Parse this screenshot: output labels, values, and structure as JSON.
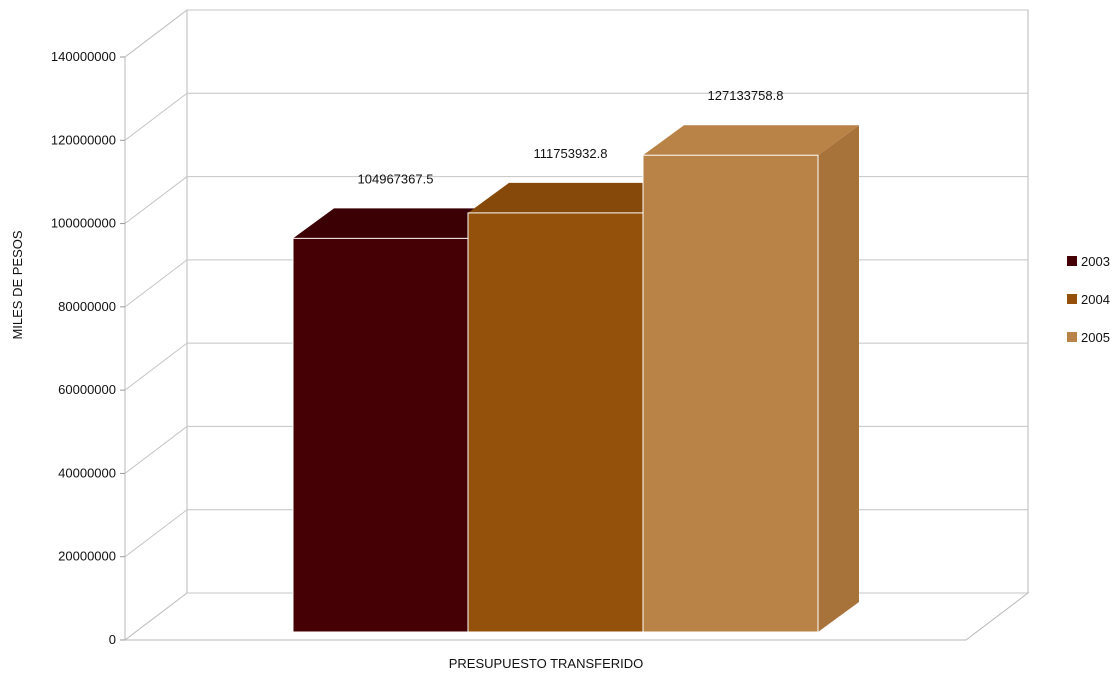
{
  "chart_data": {
    "type": "bar",
    "subtype": "3d-clustered-column",
    "title": "",
    "xlabel": "PRESUPUESTO TRANSFERIDO",
    "ylabel": "MILES DE PESOS",
    "ylim": [
      0,
      140000000
    ],
    "yticks": [
      "0",
      "20000000",
      "40000000",
      "60000000",
      "80000000",
      "100000000",
      "120000000",
      "140000000"
    ],
    "grid": true,
    "legend_position": "right",
    "categories": [
      "PRESUPUESTO TRANSFERIDO"
    ],
    "series": [
      {
        "name": "2003",
        "value": 104967367.5,
        "label": "104967367.5",
        "color": "#450005",
        "side_color": "#2e0003",
        "top_color": "#3a0004"
      },
      {
        "name": "2004",
        "value": 111753932.8,
        "label": "111753932.8",
        "color": "#94510b",
        "side_color": "#6e3b06",
        "top_color": "#864909"
      },
      {
        "name": "2005",
        "value": 127133758.8,
        "label": "127133758.8",
        "color": "#b98246",
        "side_color": "#a8733a",
        "top_color": "#b98246"
      }
    ]
  }
}
